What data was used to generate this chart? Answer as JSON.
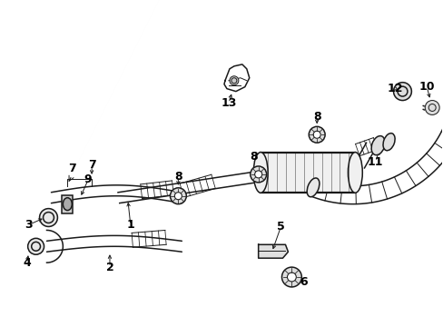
{
  "background_color": "#ffffff",
  "line_color": "#1a1a1a",
  "text_color": "#000000",
  "figsize": [
    4.89,
    3.6
  ],
  "dpi": 100,
  "label_fs": 9,
  "lw_thin": 0.7,
  "lw_med": 1.1,
  "lw_thick": 1.6
}
